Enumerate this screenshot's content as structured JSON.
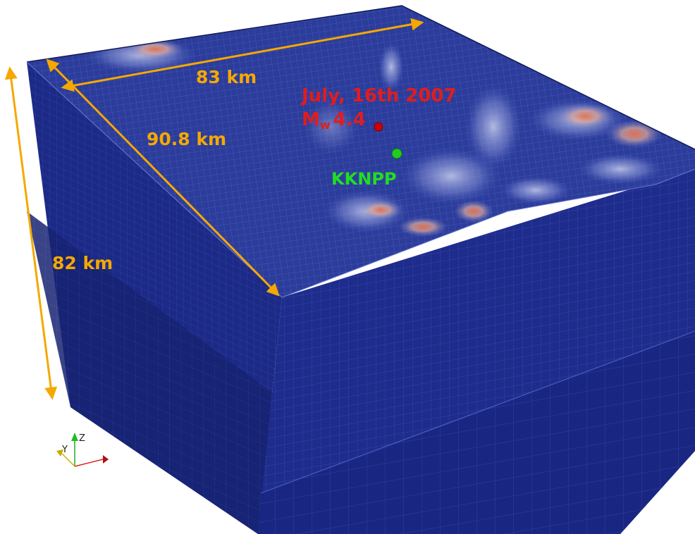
{
  "dimensions": {
    "length_x": "83 km",
    "length_y": "90.8 km",
    "depth_z": "82 km"
  },
  "event": {
    "date": "July, 16th 2007",
    "magnitude_symbol": "M",
    "magnitude_subscript": "w",
    "magnitude_value": "4.4"
  },
  "site": {
    "name": "KKNPP"
  },
  "axes_triad": {
    "z": "Z",
    "y": "Y"
  },
  "colors": {
    "mesh_blue": "#1f2f8f",
    "mesh_side": "#18247a",
    "mesh_dark": "#101a58",
    "arrow": "#f5a800",
    "event_text": "#e11d1d",
    "site_text": "#22dd22",
    "relief_high": "#e06040"
  }
}
